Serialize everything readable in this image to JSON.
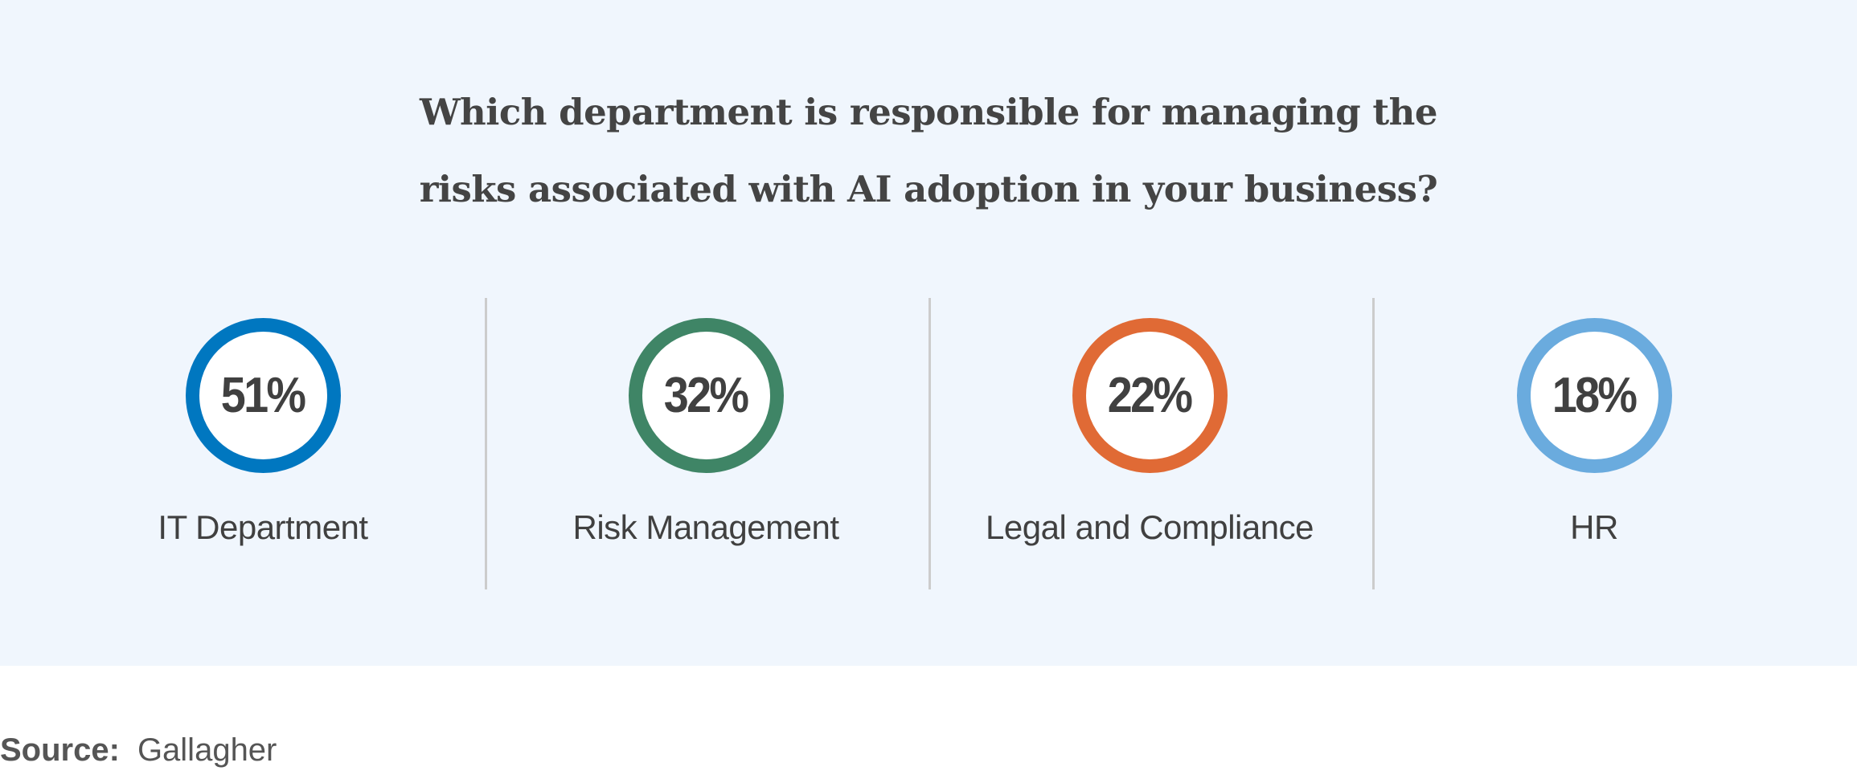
{
  "chart_data": {
    "type": "table",
    "title_lines": [
      "Which department is responsible for managing the",
      "risks associated with AI adoption in your business?"
    ],
    "categories": [
      "IT Department",
      "Risk Management",
      "Legal and Compliance",
      "HR"
    ],
    "values": [
      51,
      32,
      22,
      18
    ],
    "value_labels": [
      "51%",
      "32%",
      "22%",
      "18%"
    ],
    "colors": [
      "#0077c0",
      "#3f8566",
      "#e06a35",
      "#6aabde"
    ]
  },
  "source": {
    "label": "Source:",
    "value": "Gallagher"
  }
}
